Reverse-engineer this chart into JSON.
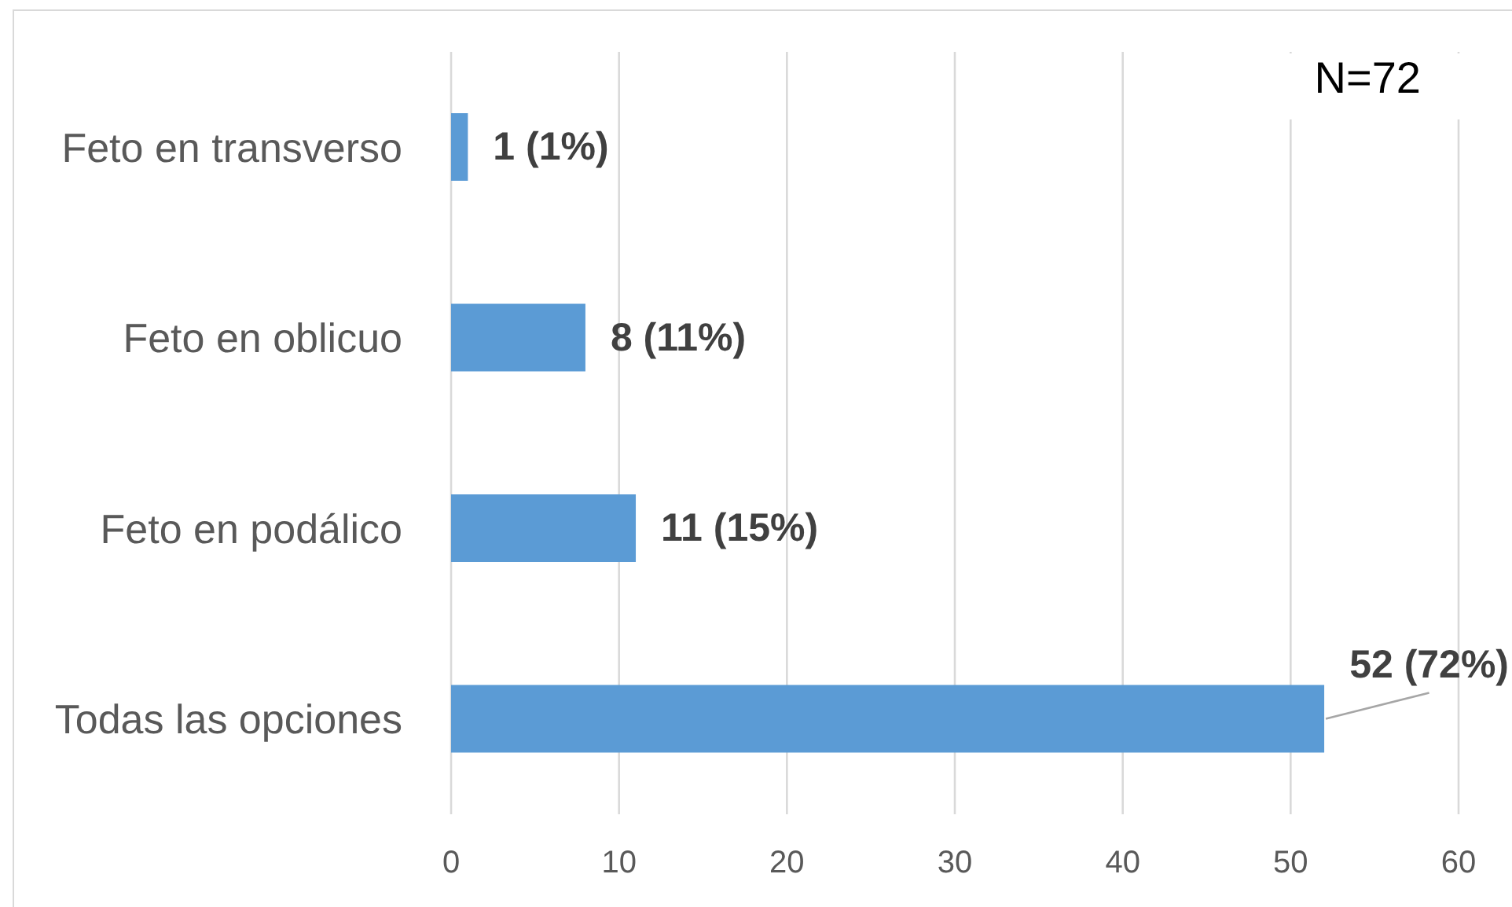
{
  "chart_data": {
    "type": "bar",
    "orientation": "horizontal",
    "categories": [
      "Feto en transverso",
      "Feto en oblicuo",
      "Feto en podálico",
      "Todas las opciones"
    ],
    "values": [
      1,
      8,
      11,
      52
    ],
    "color": "#5b9bd5",
    "value_labels": [
      "1 (1%)",
      "8 (11%)",
      "11 (15%)",
      "52 (72%)"
    ],
    "xlim": [
      0,
      60
    ],
    "xticks": [
      0,
      10,
      20,
      30,
      40,
      50,
      60
    ],
    "grid": "x",
    "annotations": [
      "N=72"
    ]
  }
}
